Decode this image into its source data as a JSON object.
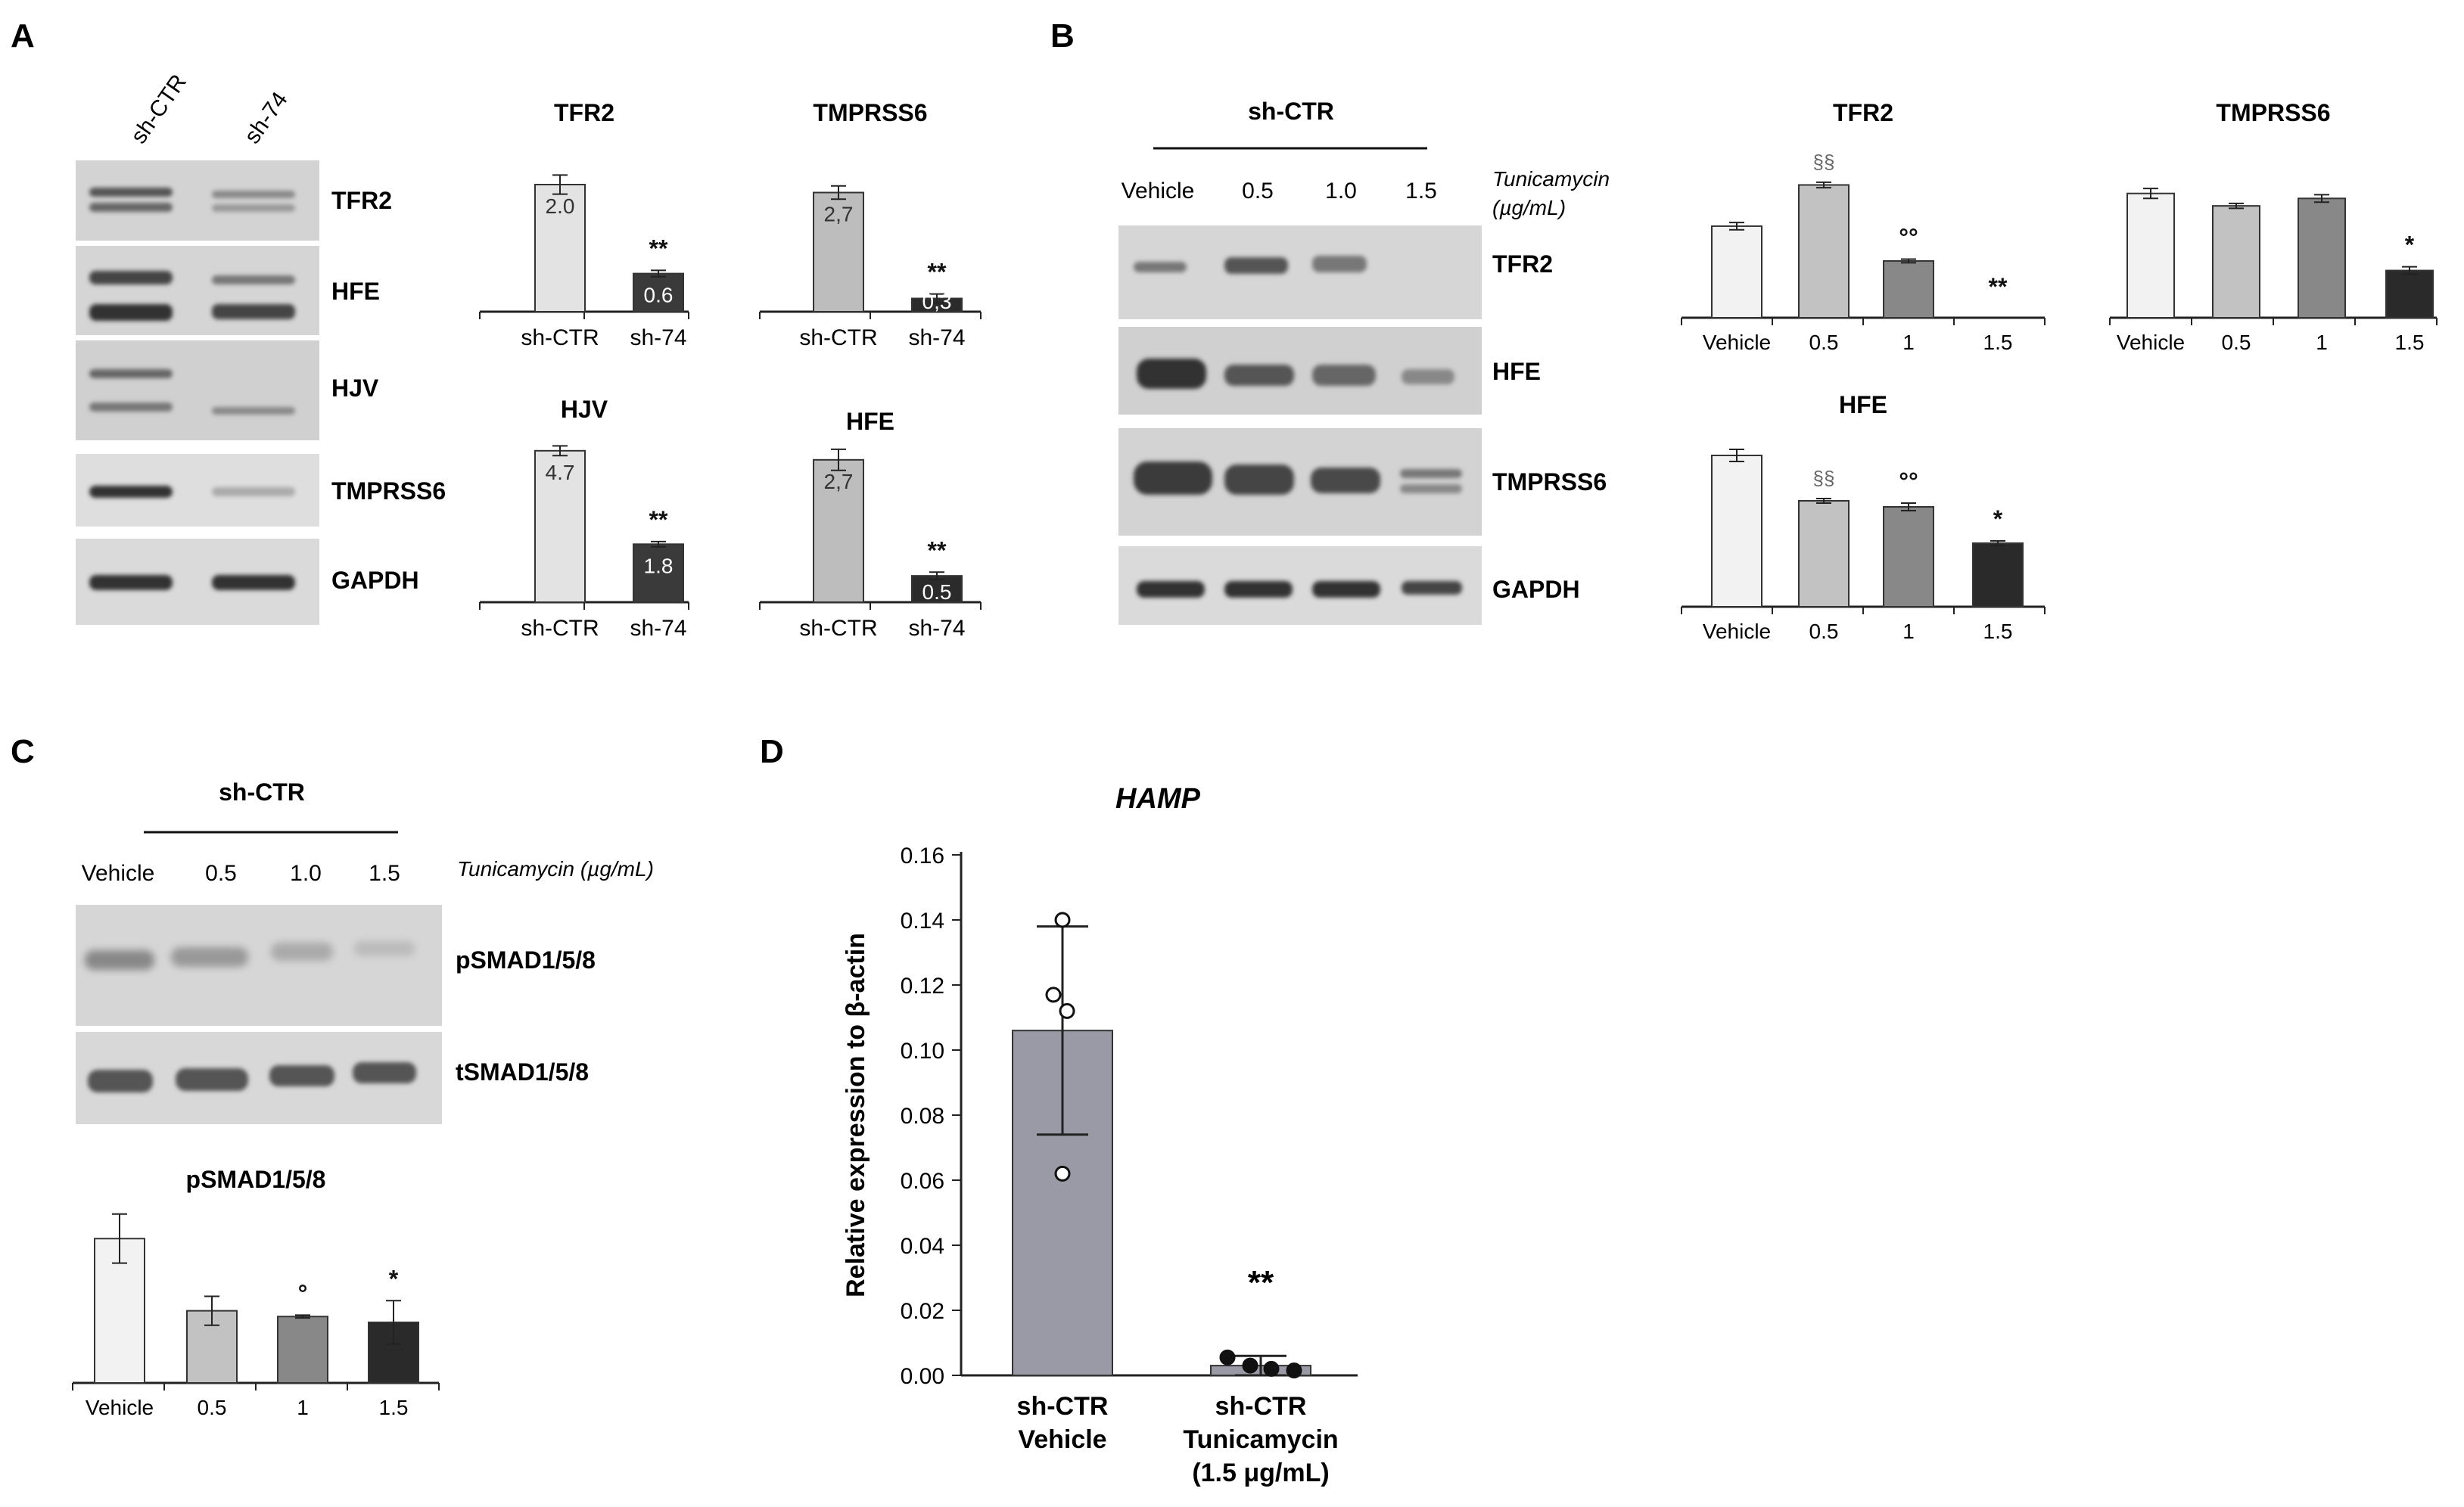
{
  "panels": {
    "A": {
      "letter": "A",
      "lanes": [
        "sh-CTR",
        "sh-74"
      ],
      "blots": [
        "TFR2",
        "HFE",
        "HJV",
        "TMPRSS6",
        "GAPDH"
      ]
    },
    "B": {
      "letter": "B",
      "group": "sh-CTR",
      "lanes": [
        "Vehicle",
        "0.5",
        "1.0",
        "1.5"
      ],
      "treatment": "Tunicamycin",
      "unit": "(µg/mL)",
      "blots": [
        "TFR2",
        "HFE",
        "TMPRSS6",
        "GAPDH"
      ]
    },
    "C": {
      "letter": "C",
      "group": "sh-CTR",
      "lanes": [
        "Vehicle",
        "0.5",
        "1.0",
        "1.5"
      ],
      "treatment_label": "Tunicamycin (µg/mL)",
      "blots": [
        "pSMAD1/5/8",
        "tSMAD1/5/8"
      ]
    },
    "D": {
      "letter": "D"
    }
  },
  "chart_data": [
    {
      "type": "bar",
      "panel": "A",
      "title": "TFR2",
      "categories": [
        "sh-CTR",
        "sh-74"
      ],
      "values": [
        2.0,
        0.6
      ],
      "errors": [
        0.15,
        0.05
      ],
      "value_labels": [
        "2.0",
        "0.6"
      ],
      "annotations": [
        "",
        "**"
      ],
      "colors": [
        "#e3e3e3",
        "#3a3a3a"
      ],
      "ylim": [
        0,
        2.5
      ]
    },
    {
      "type": "bar",
      "panel": "A",
      "title": "TMPRSS6",
      "categories": [
        "sh-CTR",
        "sh-74"
      ],
      "values": [
        2.7,
        0.3
      ],
      "errors": [
        0.15,
        0.1
      ],
      "value_labels": [
        "2,7",
        "0,3"
      ],
      "annotations": [
        "",
        "**"
      ],
      "colors": [
        "#bdbdbd",
        "#2b2b2b"
      ],
      "ylim": [
        0,
        3.6
      ]
    },
    {
      "type": "bar",
      "panel": "A",
      "title": "HJV",
      "categories": [
        "sh-CTR",
        "sh-74"
      ],
      "values": [
        4.7,
        1.8
      ],
      "errors": [
        0.15,
        0.08
      ],
      "value_labels": [
        "4.7",
        "1.8"
      ],
      "annotations": [
        "",
        "**"
      ],
      "colors": [
        "#e3e3e3",
        "#3a3a3a"
      ],
      "ylim": [
        0,
        5.4
      ]
    },
    {
      "type": "bar",
      "panel": "A",
      "title": "HFE",
      "categories": [
        "sh-CTR",
        "sh-74"
      ],
      "values": [
        2.7,
        0.5
      ],
      "errors": [
        0.2,
        0.07
      ],
      "value_labels": [
        "2,7",
        "0.5"
      ],
      "annotations": [
        "",
        "**"
      ],
      "colors": [
        "#bdbdbd",
        "#2b2b2b"
      ],
      "ylim": [
        0,
        3.3
      ]
    },
    {
      "type": "bar",
      "panel": "B",
      "title": "TFR2",
      "categories": [
        "Vehicle",
        "0.5",
        "1",
        "1.5"
      ],
      "values": [
        1.0,
        1.45,
        0.62,
        0.0
      ],
      "errors": [
        0.04,
        0.03,
        0.02,
        0.0
      ],
      "annotations": [
        "",
        "§§",
        "°°",
        "**"
      ],
      "colors": [
        "#f2f2f2",
        "#c2c2c2",
        "#888888",
        "#2a2a2a"
      ],
      "ylim": [
        0,
        1.9
      ]
    },
    {
      "type": "bar",
      "panel": "B",
      "title": "TMPRSS6",
      "categories": [
        "Vehicle",
        "0.5",
        "1",
        "1.5"
      ],
      "values": [
        1.0,
        0.9,
        0.96,
        0.38
      ],
      "errors": [
        0.04,
        0.02,
        0.03,
        0.03
      ],
      "annotations": [
        "",
        "",
        "",
        "*"
      ],
      "colors": [
        "#f2f2f2",
        "#c2c2c2",
        "#888888",
        "#2a2a2a"
      ],
      "ylim": [
        0,
        1.4
      ]
    },
    {
      "type": "bar",
      "panel": "B",
      "title": "HFE",
      "categories": [
        "Vehicle",
        "0.5",
        "1",
        "1.5"
      ],
      "values": [
        1.0,
        0.7,
        0.66,
        0.42
      ],
      "errors": [
        0.04,
        0.015,
        0.025,
        0.015
      ],
      "annotations": [
        "",
        "§§",
        "°°",
        "*"
      ],
      "colors": [
        "#f2f2f2",
        "#c2c2c2",
        "#888888",
        "#2a2a2a"
      ],
      "ylim": [
        0,
        1.2
      ]
    },
    {
      "type": "bar",
      "panel": "C",
      "title": "pSMAD1/5/8",
      "categories": [
        "Vehicle",
        "0.5",
        "1",
        "1.5"
      ],
      "values": [
        1.0,
        0.5,
        0.46,
        0.42
      ],
      "errors": [
        0.17,
        0.1,
        0.01,
        0.15
      ],
      "annotations": [
        "",
        "",
        "°",
        "*"
      ],
      "colors": [
        "#f2f2f2",
        "#c2c2c2",
        "#888888",
        "#2a2a2a"
      ],
      "ylim": [
        0,
        1.3
      ]
    },
    {
      "type": "bar",
      "panel": "D",
      "title": "HAMP",
      "ylabel": "Relative expression to β-actin",
      "categories": [
        "sh-CTR\nVehicle",
        "sh-CTR\nTunicamycin\n(1.5 μg/mL)"
      ],
      "values": [
        0.106,
        0.003
      ],
      "errors": [
        0.032,
        0.003
      ],
      "points": [
        [
          0.14,
          0.117,
          0.112,
          0.062
        ],
        [
          0.0055,
          0.003,
          0.002,
          0.0015
        ]
      ],
      "point_fill": [
        "open",
        "filled"
      ],
      "annotations": [
        "",
        "**"
      ],
      "colors": [
        "#9a9aa6",
        "#9a9aa6"
      ],
      "ylim": [
        0,
        0.16
      ],
      "yticks": [
        "0.00",
        "0.02",
        "0.04",
        "0.06",
        "0.08",
        "0.10",
        "0.12",
        "0.14",
        "0.16"
      ]
    }
  ]
}
